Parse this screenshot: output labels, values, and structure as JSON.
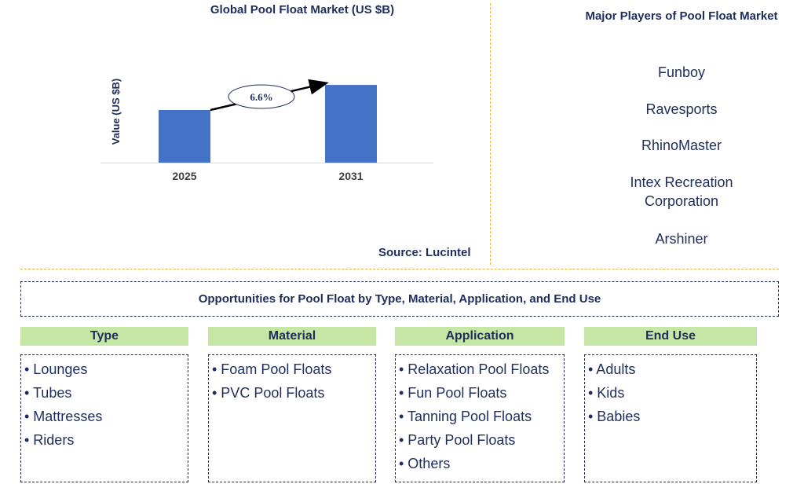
{
  "chart_data": {
    "type": "bar",
    "title": "Global Pool Float Market (US $B)",
    "ylabel": "Value (US $B)",
    "categories": [
      "2025",
      "2031"
    ],
    "values": [
      0.63,
      0.93
    ],
    "ylim": [
      0,
      1.1
    ],
    "annotation": "6.6%",
    "colors": {
      "bar": "#4472c4",
      "axis": "#d9d9d9",
      "text": "#1f2d5c"
    }
  },
  "source": "Source: Lucintel",
  "players": {
    "title": "Major Players of Pool Float Market",
    "items": [
      "Funboy",
      "Ravesports",
      "RhinoMaster",
      "Intex Recreation Corporation",
      "Arshiner"
    ]
  },
  "opportunities_title": "Opportunities for Pool Float by Type, Material, Application, and End Use",
  "categories": [
    {
      "header": "Type",
      "items": [
        "• Lounges",
        "• Tubes",
        "• Mattresses",
        "• Riders"
      ]
    },
    {
      "header": "Material",
      "items": [
        "• Foam Pool Floats",
        "• PVC Pool Floats"
      ]
    },
    {
      "header": "Application",
      "items": [
        "• Relaxation Pool Floats",
        "• Fun Pool Floats",
        "• Tanning Pool Floats",
        "• Party Pool Floats",
        "• Others"
      ]
    },
    {
      "header": "End Use",
      "items": [
        "• Adults",
        "• Kids",
        "• Babies"
      ]
    }
  ]
}
